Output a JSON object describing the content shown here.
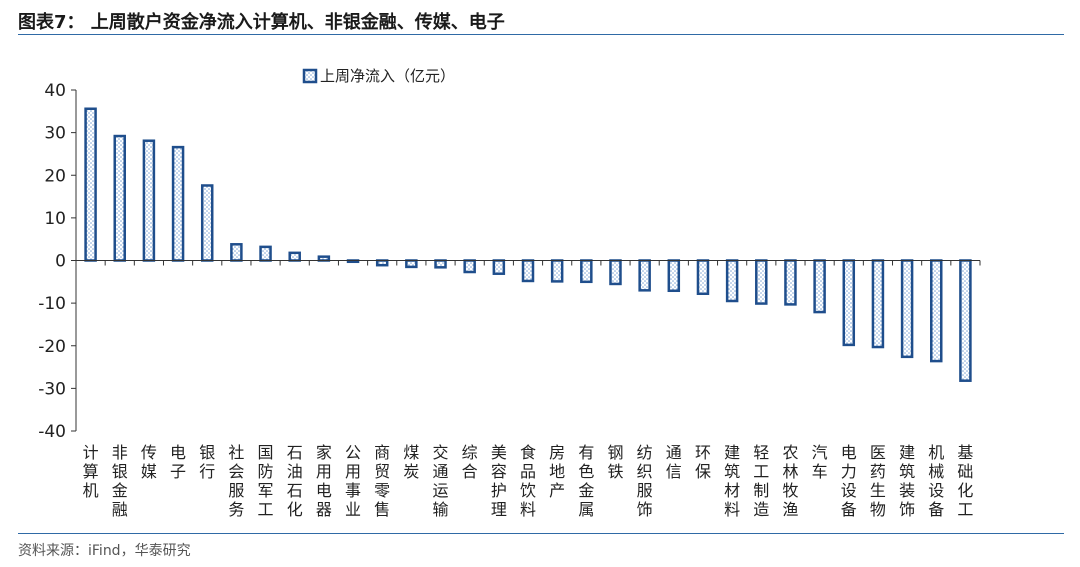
{
  "title": "图表7： 上周散户资金净流入计算机、非银金融、传媒、电子",
  "source": "资料来源：iFind，华泰研究",
  "colors": {
    "bar_outline": "#1f4e8c",
    "bar_pattern": "#7fa6d6",
    "axis": "#333333",
    "rule": "#2f6aa6"
  },
  "chart_data": {
    "type": "bar",
    "ylim": [
      -40,
      40
    ],
    "yticks": [
      40,
      30,
      20,
      10,
      0,
      -10,
      -20,
      -30,
      -40
    ],
    "legend": "上周净流入（亿元）",
    "legend_position": "top-center",
    "grid": false,
    "categories": [
      "计算机",
      "非银金融",
      "传媒",
      "电子",
      "银行",
      "社会服务",
      "国防军工",
      "石油石化",
      "家用电器",
      "公用事业",
      "商贸零售",
      "煤炭",
      "交通运输",
      "综合",
      "美容护理",
      "食品饮料",
      "房地产",
      "有色金属",
      "钢铁",
      "纺织服饰",
      "通信",
      "环保",
      "建筑材料",
      "轻工制造",
      "农林牧渔",
      "汽车",
      "电力设备",
      "医药生物",
      "建筑装饰",
      "机械设备",
      "基础化工"
    ],
    "series": [
      {
        "name": "上周净流入（亿元）",
        "values": [
          35.6,
          29.2,
          28.1,
          26.6,
          17.6,
          3.8,
          3.2,
          1.8,
          0.9,
          -0.3,
          -1.1,
          -1.5,
          -1.6,
          -2.7,
          -3.1,
          -4.8,
          -4.9,
          -5.0,
          -5.5,
          -7.0,
          -7.1,
          -7.8,
          -9.5,
          -10.1,
          -10.3,
          -12.1,
          -19.8,
          -20.3,
          -22.6,
          -23.6,
          -28.2
        ]
      }
    ]
  }
}
